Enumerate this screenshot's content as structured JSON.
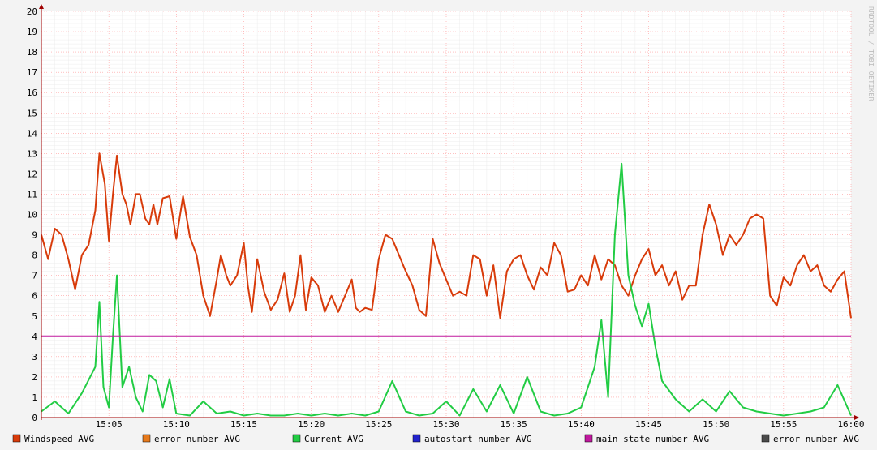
{
  "side_label": "RRDTOOL / TOBI OETIKER",
  "colors": {
    "background": "#f3f3f3",
    "plot_background": "#ffffff",
    "major_grid": "#ff9a9a",
    "minor_grid": "#ececec",
    "axis": "#a00000",
    "text": "#000000"
  },
  "chart_data": {
    "type": "line",
    "x_axis": {
      "start": "15:00",
      "end": "16:00",
      "tick_labels": [
        "15:05",
        "15:10",
        "15:15",
        "15:20",
        "15:25",
        "15:30",
        "15:35",
        "15:40",
        "15:45",
        "15:50",
        "15:55",
        "16:00"
      ],
      "grid_minutes": 1
    },
    "y_axis": {
      "ylim": [
        0,
        20
      ],
      "tick_labels": [
        "0",
        "1",
        "2",
        "3",
        "4",
        "5",
        "6",
        "7",
        "8",
        "9",
        "10",
        "11",
        "12",
        "13",
        "14",
        "15",
        "16",
        "17",
        "18",
        "19",
        "20"
      ],
      "minor_step": 0.2
    },
    "grid": true,
    "legend_position": "bottom",
    "legend": [
      {
        "name": "Windspeed AVG",
        "color": "#d83b0a"
      },
      {
        "name": "error_number AVG",
        "color": "#e77a1c"
      },
      {
        "name": "Current AVG",
        "color": "#22cc44"
      },
      {
        "name": "autostart_number AVG",
        "color": "#2222cc"
      },
      {
        "name": "main_state_number AVG",
        "color": "#c0189e"
      },
      {
        "name": "error_number AVG",
        "color": "#4a4a4a"
      }
    ],
    "series": [
      {
        "name": "Windspeed AVG",
        "color": "#d83b0a",
        "points": [
          [
            "15:00",
            9.0
          ],
          [
            "15:00.5",
            7.8
          ],
          [
            "15:01",
            9.3
          ],
          [
            "15:01.5",
            9.0
          ],
          [
            "15:02",
            7.8
          ],
          [
            "15:02.5",
            6.3
          ],
          [
            "15:03",
            8.0
          ],
          [
            "15:03.5",
            8.5
          ],
          [
            "15:04",
            10.2
          ],
          [
            "15:04.3",
            13.0
          ],
          [
            "15:04.7",
            11.5
          ],
          [
            "15:05",
            8.7
          ],
          [
            "15:05.3",
            11.0
          ],
          [
            "15:05.6",
            12.9
          ],
          [
            "15:06",
            11.0
          ],
          [
            "15:06.3",
            10.5
          ],
          [
            "15:06.6",
            9.5
          ],
          [
            "15:07",
            11.0
          ],
          [
            "15:07.3",
            11.0
          ],
          [
            "15:07.7",
            9.8
          ],
          [
            "15:08",
            9.5
          ],
          [
            "15:08.3",
            10.5
          ],
          [
            "15:08.6",
            9.5
          ],
          [
            "15:09",
            10.8
          ],
          [
            "15:09.5",
            10.9
          ],
          [
            "15:10",
            8.8
          ],
          [
            "15:10.5",
            10.9
          ],
          [
            "15:11",
            8.9
          ],
          [
            "15:11.5",
            8.0
          ],
          [
            "15:12",
            6.0
          ],
          [
            "15:12.5",
            5.0
          ],
          [
            "15:13",
            6.8
          ],
          [
            "15:13.3",
            8.0
          ],
          [
            "15:13.7",
            7.0
          ],
          [
            "15:14",
            6.5
          ],
          [
            "15:14.5",
            7.0
          ],
          [
            "15:15",
            8.6
          ],
          [
            "15:15.3",
            6.5
          ],
          [
            "15:15.6",
            5.2
          ],
          [
            "15:16",
            7.8
          ],
          [
            "15:16.5",
            6.2
          ],
          [
            "15:17",
            5.3
          ],
          [
            "15:17.5",
            5.8
          ],
          [
            "15:18",
            7.1
          ],
          [
            "15:18.4",
            5.2
          ],
          [
            "15:18.8",
            6.0
          ],
          [
            "15:19.2",
            8.0
          ],
          [
            "15:19.6",
            5.3
          ],
          [
            "15:20",
            6.9
          ],
          [
            "15:20.5",
            6.5
          ],
          [
            "15:21",
            5.2
          ],
          [
            "15:21.5",
            6.0
          ],
          [
            "15:22",
            5.2
          ],
          [
            "15:22.5",
            6.0
          ],
          [
            "15:23",
            6.8
          ],
          [
            "15:23.3",
            5.4
          ],
          [
            "15:23.6",
            5.2
          ],
          [
            "15:24",
            5.4
          ],
          [
            "15:24.5",
            5.3
          ],
          [
            "15:25",
            7.8
          ],
          [
            "15:25.5",
            9.0
          ],
          [
            "15:26",
            8.8
          ],
          [
            "15:26.5",
            8.0
          ],
          [
            "15:27",
            7.2
          ],
          [
            "15:27.5",
            6.5
          ],
          [
            "15:28",
            5.3
          ],
          [
            "15:28.5",
            5.0
          ],
          [
            "15:29",
            8.8
          ],
          [
            "15:29.5",
            7.6
          ],
          [
            "15:30",
            6.8
          ],
          [
            "15:30.5",
            6.0
          ],
          [
            "15:31",
            6.2
          ],
          [
            "15:31.5",
            6.0
          ],
          [
            "15:32",
            8.0
          ],
          [
            "15:32.5",
            7.8
          ],
          [
            "15:33",
            6.0
          ],
          [
            "15:33.5",
            7.5
          ],
          [
            "15:34",
            4.9
          ],
          [
            "15:34.5",
            7.2
          ],
          [
            "15:35",
            7.8
          ],
          [
            "15:35.5",
            8.0
          ],
          [
            "15:36",
            7.0
          ],
          [
            "15:36.5",
            6.3
          ],
          [
            "15:37",
            7.4
          ],
          [
            "15:37.5",
            7.0
          ],
          [
            "15:38",
            8.6
          ],
          [
            "15:38.5",
            8.0
          ],
          [
            "15:39",
            6.2
          ],
          [
            "15:39.5",
            6.3
          ],
          [
            "15:40",
            7.0
          ],
          [
            "15:40.5",
            6.5
          ],
          [
            "15:41",
            8.0
          ],
          [
            "15:41.5",
            6.8
          ],
          [
            "15:42",
            7.8
          ],
          [
            "15:42.5",
            7.5
          ],
          [
            "15:43",
            6.5
          ],
          [
            "15:43.5",
            6.0
          ],
          [
            "15:44",
            7.0
          ],
          [
            "15:44.5",
            7.8
          ],
          [
            "15:45",
            8.3
          ],
          [
            "15:45.5",
            7.0
          ],
          [
            "15:46",
            7.5
          ],
          [
            "15:46.5",
            6.5
          ],
          [
            "15:47",
            7.2
          ],
          [
            "15:47.5",
            5.8
          ],
          [
            "15:48",
            6.5
          ],
          [
            "15:48.5",
            6.5
          ],
          [
            "15:49",
            9.0
          ],
          [
            "15:49.5",
            10.5
          ],
          [
            "15:50",
            9.5
          ],
          [
            "15:50.5",
            8.0
          ],
          [
            "15:51",
            9.0
          ],
          [
            "15:51.5",
            8.5
          ],
          [
            "15:52",
            9.0
          ],
          [
            "15:52.5",
            9.8
          ],
          [
            "15:53",
            10.0
          ],
          [
            "15:53.5",
            9.8
          ],
          [
            "15:54",
            6.0
          ],
          [
            "15:54.5",
            5.5
          ],
          [
            "15:55",
            6.9
          ],
          [
            "15:55.5",
            6.5
          ],
          [
            "15:56",
            7.5
          ],
          [
            "15:56.5",
            8.0
          ],
          [
            "15:57",
            7.2
          ],
          [
            "15:57.5",
            7.5
          ],
          [
            "15:58",
            6.5
          ],
          [
            "15:58.5",
            6.2
          ],
          [
            "15:59",
            6.8
          ],
          [
            "15:59.5",
            7.2
          ],
          [
            "16:00",
            4.9
          ]
        ]
      },
      {
        "name": "Current AVG",
        "color": "#22cc44",
        "points": [
          [
            "15:00",
            0.3
          ],
          [
            "15:01",
            0.8
          ],
          [
            "15:02",
            0.2
          ],
          [
            "15:03",
            1.2
          ],
          [
            "15:04",
            2.5
          ],
          [
            "15:04.3",
            5.7
          ],
          [
            "15:04.6",
            1.5
          ],
          [
            "15:05",
            0.5
          ],
          [
            "15:05.3",
            4.0
          ],
          [
            "15:05.6",
            7.0
          ],
          [
            "15:06",
            1.5
          ],
          [
            "15:06.5",
            2.5
          ],
          [
            "15:07",
            1.0
          ],
          [
            "15:07.5",
            0.3
          ],
          [
            "15:08",
            2.1
          ],
          [
            "15:08.5",
            1.8
          ],
          [
            "15:09",
            0.5
          ],
          [
            "15:09.5",
            1.9
          ],
          [
            "15:10",
            0.2
          ],
          [
            "15:11",
            0.1
          ],
          [
            "15:12",
            0.8
          ],
          [
            "15:13",
            0.2
          ],
          [
            "15:14",
            0.3
          ],
          [
            "15:15",
            0.1
          ],
          [
            "15:16",
            0.2
          ],
          [
            "15:17",
            0.1
          ],
          [
            "15:18",
            0.1
          ],
          [
            "15:19",
            0.2
          ],
          [
            "15:20",
            0.1
          ],
          [
            "15:21",
            0.2
          ],
          [
            "15:22",
            0.1
          ],
          [
            "15:23",
            0.2
          ],
          [
            "15:24",
            0.1
          ],
          [
            "15:25",
            0.3
          ],
          [
            "15:26",
            1.8
          ],
          [
            "15:27",
            0.3
          ],
          [
            "15:28",
            0.1
          ],
          [
            "15:29",
            0.2
          ],
          [
            "15:30",
            0.8
          ],
          [
            "15:31",
            0.1
          ],
          [
            "15:32",
            1.4
          ],
          [
            "15:33",
            0.3
          ],
          [
            "15:34",
            1.6
          ],
          [
            "15:35",
            0.2
          ],
          [
            "15:36",
            2.0
          ],
          [
            "15:37",
            0.3
          ],
          [
            "15:38",
            0.1
          ],
          [
            "15:39",
            0.2
          ],
          [
            "15:40",
            0.5
          ],
          [
            "15:40.5",
            1.5
          ],
          [
            "15:41",
            2.5
          ],
          [
            "15:41.5",
            4.8
          ],
          [
            "15:42",
            1.0
          ],
          [
            "15:42.5",
            9.0
          ],
          [
            "15:43",
            12.5
          ],
          [
            "15:43.5",
            7.0
          ],
          [
            "15:44",
            5.5
          ],
          [
            "15:44.5",
            4.5
          ],
          [
            "15:45",
            5.6
          ],
          [
            "15:45.5",
            3.5
          ],
          [
            "15:46",
            1.8
          ],
          [
            "15:47",
            0.9
          ],
          [
            "15:48",
            0.3
          ],
          [
            "15:49",
            0.9
          ],
          [
            "15:50",
            0.3
          ],
          [
            "15:51",
            1.3
          ],
          [
            "15:52",
            0.5
          ],
          [
            "15:53",
            0.3
          ],
          [
            "15:54",
            0.2
          ],
          [
            "15:55",
            0.1
          ],
          [
            "15:56",
            0.2
          ],
          [
            "15:57",
            0.3
          ],
          [
            "15:58",
            0.5
          ],
          [
            "15:59",
            1.6
          ],
          [
            "16:00",
            0.1
          ]
        ]
      },
      {
        "name": "main_state_number AVG",
        "color": "#c0189e",
        "points": [
          [
            "15:00",
            4.0
          ],
          [
            "16:00",
            4.0
          ]
        ]
      }
    ]
  }
}
